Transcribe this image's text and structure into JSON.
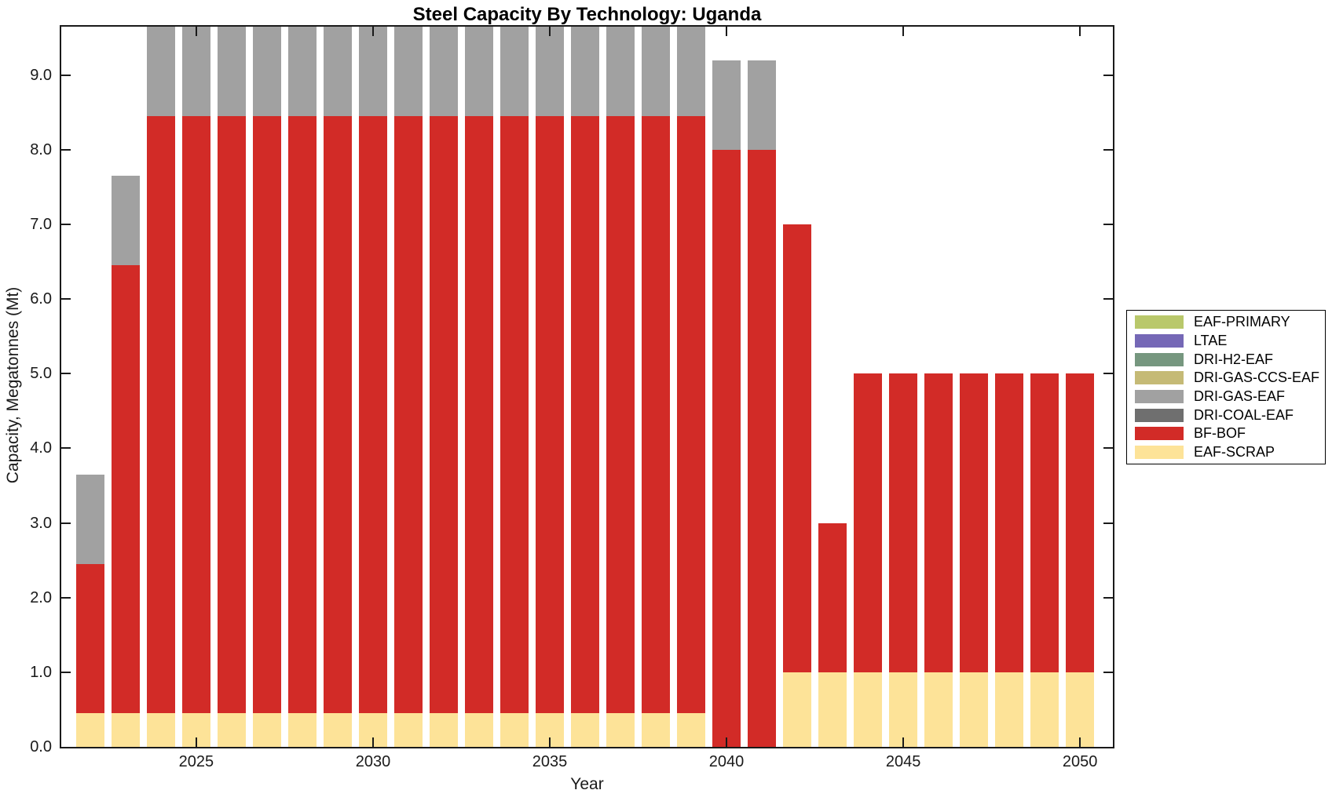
{
  "chart_data": {
    "type": "bar",
    "stacked": true,
    "title": "Steel Capacity By Technology: Uganda",
    "xlabel": "Year",
    "ylabel": "Capacity, Megatonnes (Mt)",
    "grid": false,
    "legend_position": "right-outside",
    "xlim": [
      2021.18,
      2050.93
    ],
    "ylim": [
      0,
      9.65
    ],
    "bar_width_years": 0.8,
    "xticks": [
      2025,
      2030,
      2035,
      2040,
      2045,
      2050
    ],
    "xtick_labels": [
      "2025",
      "2030",
      "2035",
      "2040",
      "2045",
      "2050"
    ],
    "yticks": [
      0,
      1,
      2,
      3,
      4,
      5,
      6,
      7,
      8,
      9
    ],
    "ytick_labels": [
      "0.0",
      "1.0",
      "2.0",
      "3.0",
      "4.0",
      "5.0",
      "6.0",
      "7.0",
      "8.0",
      "9.0"
    ],
    "categories": [
      2022,
      2023,
      2024,
      2025,
      2026,
      2027,
      2028,
      2029,
      2030,
      2031,
      2032,
      2033,
      2034,
      2035,
      2036,
      2037,
      2038,
      2039,
      2040,
      2041,
      2042,
      2043,
      2044,
      2045,
      2046,
      2047,
      2048,
      2049,
      2050
    ],
    "series": [
      {
        "name": "EAF-PRIMARY",
        "color": "#b9c86b",
        "values": [
          0,
          0,
          0,
          0,
          0,
          0,
          0,
          0,
          0,
          0,
          0,
          0,
          0,
          0,
          0,
          0,
          0,
          0,
          0,
          0,
          0,
          0,
          0,
          0,
          0,
          0,
          0,
          0,
          0
        ]
      },
      {
        "name": "LTAE",
        "color": "#7568b6",
        "values": [
          0,
          0,
          0,
          0,
          0,
          0,
          0,
          0,
          0,
          0,
          0,
          0,
          0,
          0,
          0,
          0,
          0,
          0,
          0,
          0,
          0,
          0,
          0,
          0,
          0,
          0,
          0,
          0,
          0
        ]
      },
      {
        "name": "DRI-H2-EAF",
        "color": "#76977f",
        "values": [
          0,
          0,
          0,
          0,
          0,
          0,
          0,
          0,
          0,
          0,
          0,
          0,
          0,
          0,
          0,
          0,
          0,
          0,
          0,
          0,
          0,
          0,
          0,
          0,
          0,
          0,
          0,
          0,
          0
        ]
      },
      {
        "name": "DRI-GAS-CCS-EAF",
        "color": "#c5ba76",
        "values": [
          0,
          0,
          0,
          0,
          0,
          0,
          0,
          0,
          0,
          0,
          0,
          0,
          0,
          0,
          0,
          0,
          0,
          0,
          0,
          0,
          0,
          0,
          0,
          0,
          0,
          0,
          0,
          0,
          0
        ]
      },
      {
        "name": "DRI-GAS-EAF",
        "color": "#a1a1a1",
        "values": [
          1.2,
          1.2,
          1.2,
          1.2,
          1.2,
          1.2,
          1.2,
          1.2,
          1.2,
          1.2,
          1.2,
          1.2,
          1.2,
          1.2,
          1.2,
          1.2,
          1.2,
          1.2,
          1.2,
          1.2,
          0,
          0,
          0,
          0,
          0,
          0,
          0,
          0,
          0
        ]
      },
      {
        "name": "DRI-COAL-EAF",
        "color": "#6f6f6f",
        "values": [
          0,
          0,
          0,
          0,
          0,
          0,
          0,
          0,
          0,
          0,
          0,
          0,
          0,
          0,
          0,
          0,
          0,
          0,
          0,
          0,
          0,
          0,
          0,
          0,
          0,
          0,
          0,
          0,
          0
        ]
      },
      {
        "name": "BF-BOF",
        "color": "#d22b27",
        "values": [
          2,
          6,
          8,
          8,
          8,
          8,
          8,
          8,
          8,
          8,
          8,
          8,
          8,
          8,
          8,
          8,
          8,
          8,
          8,
          8,
          6,
          2,
          4,
          4,
          4,
          4,
          4,
          4,
          4
        ]
      },
      {
        "name": "EAF-SCRAP",
        "color": "#fde398",
        "values": [
          0.45,
          0.45,
          0.45,
          0.45,
          0.45,
          0.45,
          0.45,
          0.45,
          0.45,
          0.45,
          0.45,
          0.45,
          0.45,
          0.45,
          0.45,
          0.45,
          0.45,
          0.45,
          0,
          0,
          1,
          1,
          1,
          1,
          1,
          1,
          1,
          1,
          1
        ]
      }
    ]
  }
}
